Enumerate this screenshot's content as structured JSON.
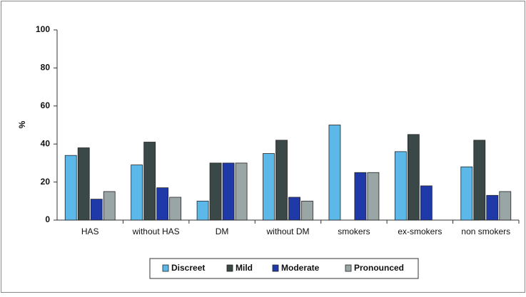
{
  "chart_data": {
    "type": "bar",
    "y_label": "%",
    "categories": [
      "HAS",
      "without HAS",
      "DM",
      "without DM",
      "smokers",
      "ex-smokers",
      "non smokers"
    ],
    "series": [
      {
        "name": "Discreet",
        "color": "#5bb8e8",
        "values": [
          34,
          29,
          10,
          35,
          50,
          36,
          28
        ]
      },
      {
        "name": "Mild",
        "color": "#3a4848",
        "values": [
          38,
          41,
          30,
          42,
          0,
          45,
          42
        ]
      },
      {
        "name": "Moderate",
        "color": "#1f3aa8",
        "values": [
          11,
          17,
          30,
          12,
          25,
          18,
          13
        ]
      },
      {
        "name": "Pronounced",
        "color": "#9aa6a6",
        "values": [
          15,
          12,
          30,
          10,
          25,
          0,
          15
        ]
      }
    ],
    "ylim": [
      0,
      100
    ],
    "yticks": [
      0,
      20,
      40,
      60,
      80,
      100
    ]
  }
}
